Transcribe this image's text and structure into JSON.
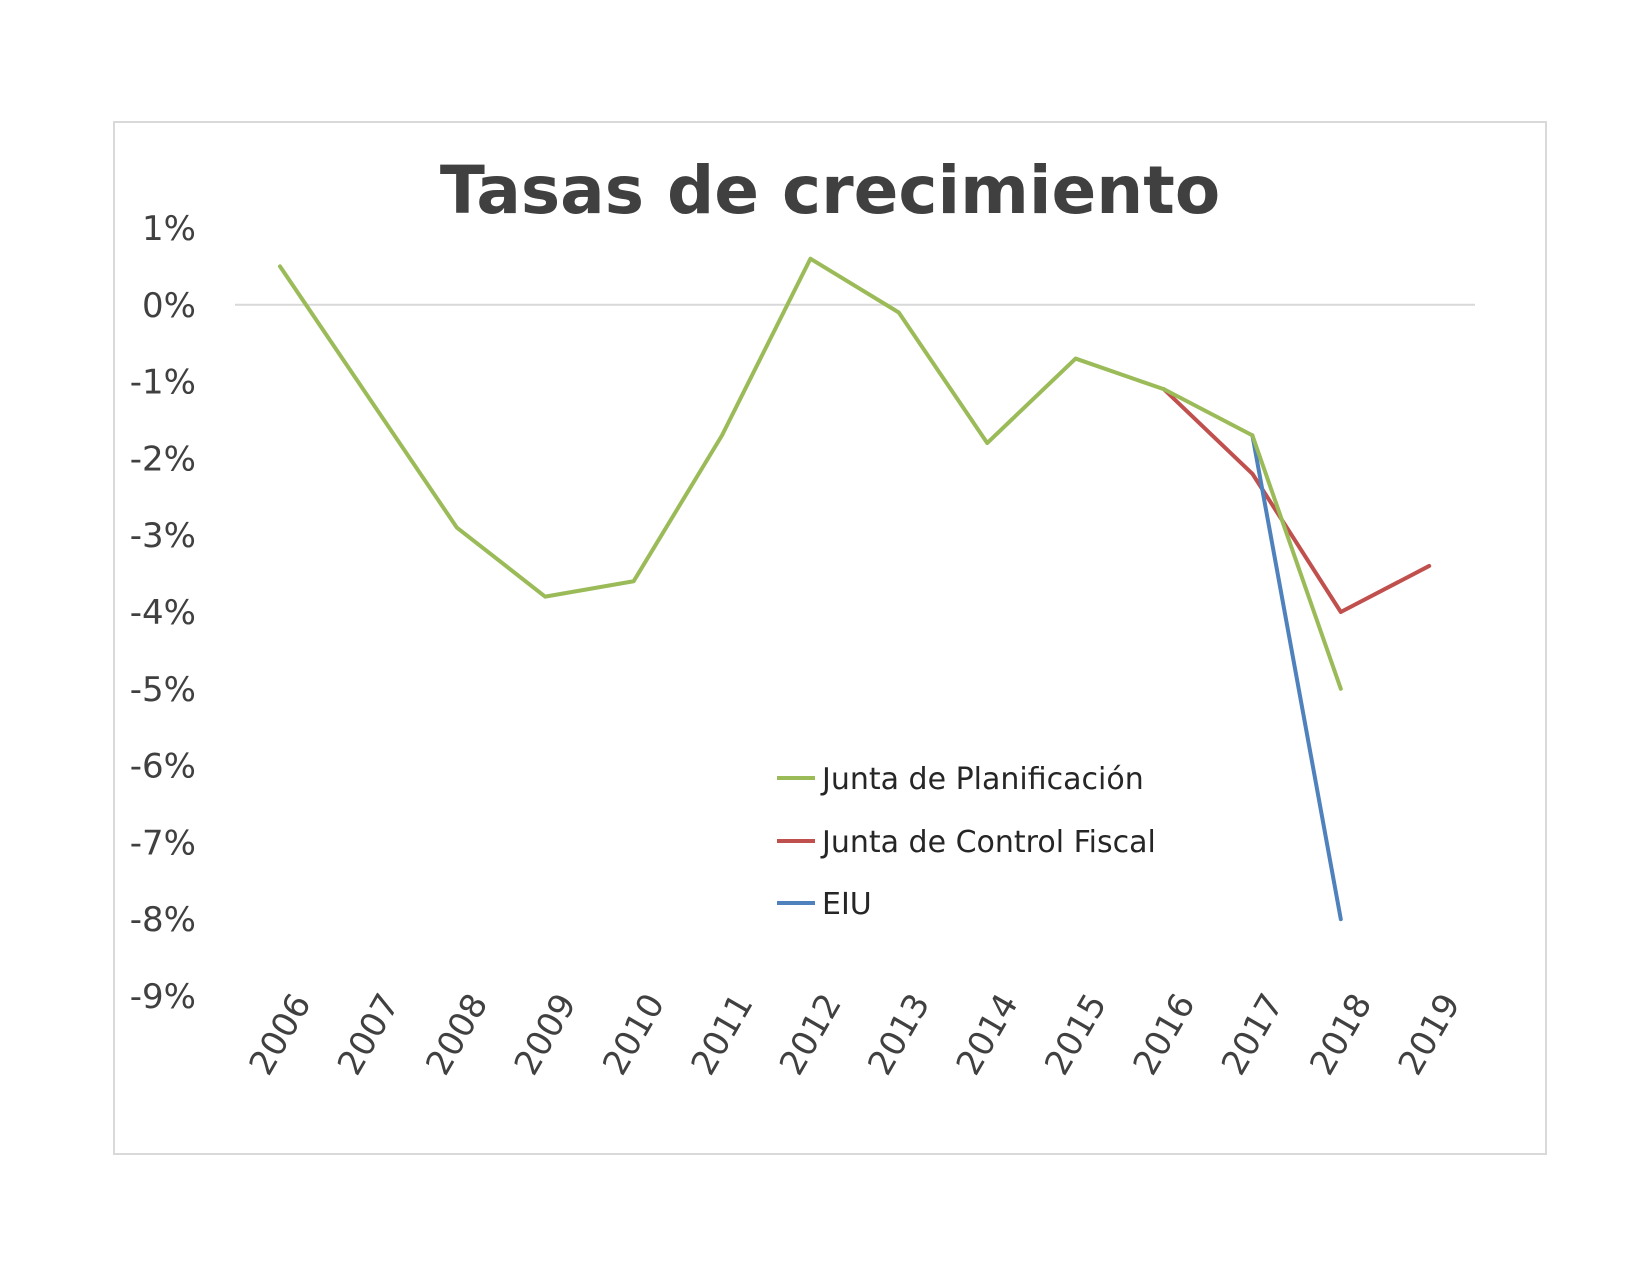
{
  "chart_data": {
    "type": "line",
    "title": "Tasas de crecimiento",
    "xlabel": "",
    "ylabel": "",
    "x": [
      "2006",
      "2007",
      "2008",
      "2009",
      "2010",
      "2011",
      "2012",
      "2013",
      "2014",
      "2015",
      "2016",
      "2017",
      "2018",
      "2019"
    ],
    "ylim": [
      -9,
      1
    ],
    "yticks": [
      1,
      0,
      -1,
      -2,
      -3,
      -4,
      -5,
      -6,
      -7,
      -8,
      -9
    ],
    "ytick_labels": [
      "1%",
      "0%",
      "-1%",
      "-2%",
      "-3%",
      "-4%",
      "-5%",
      "-6%",
      "-7%",
      "-8%",
      "-9%"
    ],
    "grid": "zero line only",
    "legend_position": "bottom-center",
    "series": [
      {
        "name": "Junta de Planificación",
        "color": "#9bbb59",
        "values": [
          0.5,
          -1.2,
          -2.9,
          -3.8,
          -3.6,
          -1.7,
          0.6,
          -0.1,
          -1.8,
          -0.7,
          -1.1,
          -1.7,
          -5.0,
          null
        ]
      },
      {
        "name": "Junta de Control Fiscal",
        "color": "#c0504d",
        "values": [
          null,
          null,
          null,
          null,
          null,
          null,
          null,
          null,
          null,
          null,
          -1.1,
          -2.2,
          -4.0,
          -3.4
        ]
      },
      {
        "name": "EIU",
        "color": "#4f81bd",
        "values": [
          null,
          null,
          null,
          null,
          null,
          null,
          null,
          null,
          null,
          null,
          null,
          -1.7,
          -8.0,
          null
        ]
      }
    ]
  }
}
